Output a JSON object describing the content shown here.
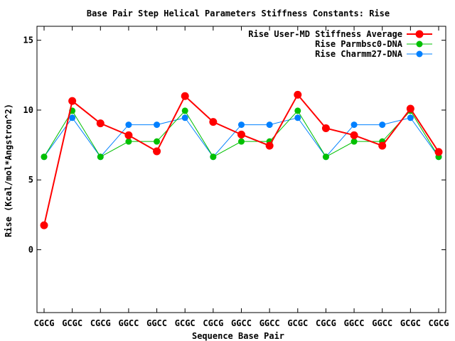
{
  "chart_data": {
    "type": "line",
    "title": "Base Pair Step Helical Parameters Stiffness Constants: Rise",
    "xlabel": "Sequence Base Pair",
    "ylabel": "Rise (Kcal/mol*Angstron^2)",
    "categories": [
      "CGCG",
      "GCGC",
      "CGCG",
      "GGCC",
      "GGCC",
      "GCGC",
      "CGCG",
      "GGCC",
      "GGCC",
      "GCGC",
      "CGCG",
      "GGCC",
      "GGCC",
      "GCGC",
      "CGCG"
    ],
    "ylim": [
      -4.5,
      16
    ],
    "yticks": [
      0,
      5,
      10,
      15
    ],
    "grid": false,
    "legend_position": "top-right",
    "series": [
      {
        "name": "Rise User-MD Stiffness Average",
        "color": "#ff0000",
        "values": [
          1.75,
          10.65,
          9.05,
          8.2,
          7.05,
          11.0,
          9.15,
          8.25,
          7.45,
          11.1,
          8.7,
          8.2,
          7.45,
          10.1,
          7.0
        ]
      },
      {
        "name": "Rise Parmbsc0-DNA",
        "color": "#00c000",
        "values": [
          6.65,
          9.95,
          6.65,
          7.75,
          7.75,
          9.95,
          6.65,
          7.75,
          7.75,
          9.95,
          6.65,
          7.75,
          7.75,
          9.95,
          6.65
        ]
      },
      {
        "name": "Rise Charmm27-DNA",
        "color": "#0080ff",
        "values": [
          6.65,
          9.45,
          6.65,
          8.95,
          8.95,
          9.45,
          6.65,
          8.95,
          8.95,
          9.45,
          6.65,
          8.95,
          8.95,
          9.45,
          6.65
        ]
      }
    ]
  }
}
